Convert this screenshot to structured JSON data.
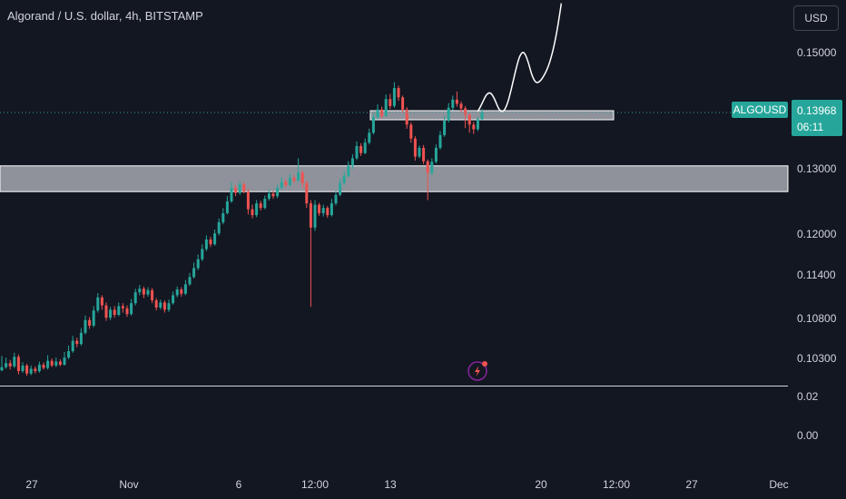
{
  "header": {
    "title": "Algorand / U.S. dollar, 4h, BITSTAMP",
    "currency": "USD"
  },
  "price_badge": {
    "symbol": "ALGOUSD",
    "price": "0.13968",
    "countdown": "06:11"
  },
  "colors": {
    "up": "#26a69a",
    "down": "#ef5350",
    "background": "#131722",
    "zone": "#b2b5be",
    "badge": "#26a69a"
  },
  "icons": {
    "indicator": "lightning-icon"
  },
  "chart_data": {
    "type": "candlestick",
    "y_axis_labels": [
      "0.15000",
      "0.13000",
      "0.12000",
      "0.11400",
      "0.10800",
      "0.10300"
    ],
    "y_axis_values": [
      0.15,
      0.13,
      0.12,
      0.114,
      0.108,
      0.103
    ],
    "indicator_axis_labels": [
      "0.02",
      "0.00"
    ],
    "x_axis_labels": [
      "27",
      "Nov",
      "6",
      "12:00",
      "13",
      "20",
      "12:00",
      "27",
      "Dec"
    ],
    "current_price": 0.13968,
    "zones": [
      {
        "low": 0.1265,
        "high": 0.1305
      },
      {
        "low": 0.1388,
        "high": 0.14
      }
    ],
    "candles": [
      [
        0.1015,
        0.1019,
        0.1033,
        0.1014
      ],
      [
        0.1019,
        0.1024,
        0.1031,
        0.1017
      ],
      [
        0.1024,
        0.102,
        0.1028,
        0.1016
      ],
      [
        0.102,
        0.1032,
        0.1037,
        0.1018
      ],
      [
        0.1032,
        0.1014,
        0.1035,
        0.101
      ],
      [
        0.1014,
        0.1021,
        0.1025,
        0.1012
      ],
      [
        0.1021,
        0.1011,
        0.1023,
        0.1008
      ],
      [
        0.1011,
        0.1017,
        0.1021,
        0.1009
      ],
      [
        0.1017,
        0.1014,
        0.102,
        0.1011
      ],
      [
        0.1014,
        0.1022,
        0.1026,
        0.1012
      ],
      [
        0.1022,
        0.1018,
        0.1025,
        0.1016
      ],
      [
        0.1018,
        0.1027,
        0.1034,
        0.1016
      ],
      [
        0.1027,
        0.1021,
        0.103,
        0.1019
      ],
      [
        0.1021,
        0.1026,
        0.1031,
        0.1019
      ],
      [
        0.1026,
        0.1022,
        0.1029,
        0.102
      ],
      [
        0.1022,
        0.1031,
        0.1038,
        0.1021
      ],
      [
        0.1031,
        0.1039,
        0.1046,
        0.1029
      ],
      [
        0.1039,
        0.1052,
        0.1058,
        0.1037
      ],
      [
        0.1052,
        0.1048,
        0.1056,
        0.1044
      ],
      [
        0.1048,
        0.1062,
        0.1068,
        0.1046
      ],
      [
        0.1062,
        0.1078,
        0.1084,
        0.106
      ],
      [
        0.1078,
        0.1071,
        0.1082,
        0.1067
      ],
      [
        0.1071,
        0.1091,
        0.1097,
        0.1069
      ],
      [
        0.1091,
        0.1109,
        0.1115,
        0.1088
      ],
      [
        0.1109,
        0.1098,
        0.1112,
        0.1092
      ],
      [
        0.1098,
        0.1081,
        0.1102,
        0.1077
      ],
      [
        0.1081,
        0.1092,
        0.1096,
        0.1078
      ],
      [
        0.1092,
        0.1085,
        0.1097,
        0.1081
      ],
      [
        0.1085,
        0.1097,
        0.1102,
        0.1083
      ],
      [
        0.1097,
        0.1094,
        0.1101,
        0.1088
      ],
      [
        0.1094,
        0.1086,
        0.1098,
        0.1082
      ],
      [
        0.1086,
        0.1101,
        0.1107,
        0.1084
      ],
      [
        0.1101,
        0.1116,
        0.1121,
        0.1098
      ],
      [
        0.1116,
        0.1121,
        0.1126,
        0.1112
      ],
      [
        0.1121,
        0.1113,
        0.1124,
        0.1108
      ],
      [
        0.1113,
        0.1119,
        0.1123,
        0.111
      ],
      [
        0.1119,
        0.1105,
        0.1122,
        0.1101
      ],
      [
        0.1105,
        0.1095,
        0.1108,
        0.1091
      ],
      [
        0.1095,
        0.1102,
        0.1106,
        0.1092
      ],
      [
        0.1102,
        0.1092,
        0.1105,
        0.1088
      ],
      [
        0.1092,
        0.1101,
        0.1106,
        0.1089
      ],
      [
        0.1101,
        0.1112,
        0.1117,
        0.1099
      ],
      [
        0.1112,
        0.112,
        0.1124,
        0.1109
      ],
      [
        0.112,
        0.1114,
        0.1123,
        0.111
      ],
      [
        0.1114,
        0.1127,
        0.1133,
        0.1112
      ],
      [
        0.1127,
        0.1137,
        0.1143,
        0.1125
      ],
      [
        0.1137,
        0.115,
        0.1158,
        0.1135
      ],
      [
        0.115,
        0.1163,
        0.117,
        0.1147
      ],
      [
        0.1163,
        0.1178,
        0.1185,
        0.116
      ],
      [
        0.1178,
        0.1192,
        0.1198,
        0.1175
      ],
      [
        0.1192,
        0.1185,
        0.1196,
        0.1181
      ],
      [
        0.1185,
        0.1201,
        0.1207,
        0.1183
      ],
      [
        0.1201,
        0.1218,
        0.1224,
        0.1198
      ],
      [
        0.1218,
        0.1232,
        0.124,
        0.1215
      ],
      [
        0.1232,
        0.125,
        0.1258,
        0.123
      ],
      [
        0.125,
        0.1271,
        0.128,
        0.1248
      ],
      [
        0.1271,
        0.1263,
        0.1275,
        0.1258
      ],
      [
        0.1263,
        0.1276,
        0.1281,
        0.126
      ],
      [
        0.1276,
        0.1265,
        0.1279,
        0.1262
      ],
      [
        0.1265,
        0.1238,
        0.1269,
        0.123
      ],
      [
        0.1238,
        0.1229,
        0.1245,
        0.1224
      ],
      [
        0.1229,
        0.1247,
        0.1252,
        0.1226
      ],
      [
        0.1247,
        0.124,
        0.1251,
        0.1236
      ],
      [
        0.124,
        0.1254,
        0.1259,
        0.1238
      ],
      [
        0.1254,
        0.1262,
        0.1268,
        0.1251
      ],
      [
        0.1262,
        0.1258,
        0.1266,
        0.1254
      ],
      [
        0.1258,
        0.1271,
        0.1276,
        0.1255
      ],
      [
        0.1271,
        0.128,
        0.1287,
        0.1268
      ],
      [
        0.128,
        0.1275,
        0.1284,
        0.1272
      ],
      [
        0.1275,
        0.1286,
        0.1292,
        0.1273
      ],
      [
        0.1286,
        0.1282,
        0.129,
        0.1278
      ],
      [
        0.1282,
        0.1294,
        0.1318,
        0.128
      ],
      [
        0.1294,
        0.1278,
        0.1297,
        0.1271
      ],
      [
        0.1278,
        0.1247,
        0.1282,
        0.124
      ],
      [
        0.1247,
        0.121,
        0.1252,
        0.1096
      ],
      [
        0.121,
        0.1245,
        0.1252,
        0.1205
      ],
      [
        0.1245,
        0.1232,
        0.1248,
        0.1228
      ],
      [
        0.1232,
        0.124,
        0.1245,
        0.1227
      ],
      [
        0.124,
        0.1229,
        0.1243,
        0.1225
      ],
      [
        0.1229,
        0.1247,
        0.1254,
        0.1227
      ],
      [
        0.1247,
        0.126,
        0.1266,
        0.1244
      ],
      [
        0.126,
        0.1278,
        0.1285,
        0.1258
      ],
      [
        0.1278,
        0.1289,
        0.1296,
        0.1275
      ],
      [
        0.1289,
        0.1305,
        0.1313,
        0.1286
      ],
      [
        0.1305,
        0.1318,
        0.1325,
        0.13
      ],
      [
        0.1318,
        0.1339,
        0.1347,
        0.1315
      ],
      [
        0.1339,
        0.1327,
        0.1344,
        0.1322
      ],
      [
        0.1327,
        0.1345,
        0.1352,
        0.1325
      ],
      [
        0.1345,
        0.1362,
        0.1369,
        0.1342
      ],
      [
        0.1362,
        0.1389,
        0.1395,
        0.1359
      ],
      [
        0.1389,
        0.1402,
        0.1411,
        0.1385
      ],
      [
        0.1402,
        0.1391,
        0.1407,
        0.1386
      ],
      [
        0.1391,
        0.142,
        0.1428,
        0.1389
      ],
      [
        0.142,
        0.1408,
        0.1429,
        0.1403
      ],
      [
        0.1408,
        0.1439,
        0.1449,
        0.1405
      ],
      [
        0.1439,
        0.1423,
        0.1443,
        0.1417
      ],
      [
        0.1423,
        0.1402,
        0.1426,
        0.1396
      ],
      [
        0.1402,
        0.1376,
        0.1406,
        0.1369
      ],
      [
        0.1376,
        0.1352,
        0.138,
        0.1345
      ],
      [
        0.1352,
        0.1321,
        0.1356,
        0.1314
      ],
      [
        0.1321,
        0.1336,
        0.134,
        0.1318
      ],
      [
        0.1336,
        0.1313,
        0.1341,
        0.1308
      ],
      [
        0.1313,
        0.1294,
        0.1316,
        0.1252
      ],
      [
        0.1294,
        0.1312,
        0.1318,
        0.129
      ],
      [
        0.1312,
        0.1336,
        0.1342,
        0.1309
      ],
      [
        0.1336,
        0.1358,
        0.1365,
        0.1333
      ],
      [
        0.1358,
        0.1383,
        0.1391,
        0.1355
      ],
      [
        0.1383,
        0.1405,
        0.1413,
        0.138
      ],
      [
        0.1405,
        0.1419,
        0.1426,
        0.1401
      ],
      [
        0.1419,
        0.1412,
        0.1433,
        0.1407
      ],
      [
        0.1412,
        0.1404,
        0.1416,
        0.1397
      ],
      [
        0.1404,
        0.1393,
        0.1408,
        0.137
      ],
      [
        0.1393,
        0.1376,
        0.1396,
        0.1362
      ],
      [
        0.1376,
        0.1368,
        0.1381,
        0.136
      ],
      [
        0.1368,
        0.1385,
        0.139,
        0.1365
      ],
      [
        0.1385,
        0.1397,
        0.1403,
        0.1383
      ]
    ],
    "projection_path": [
      [
        114,
        0.13985
      ],
      [
        115,
        0.1412
      ],
      [
        116,
        0.1428
      ],
      [
        117,
        0.1432
      ],
      [
        118,
        0.1421
      ],
      [
        119,
        0.1402
      ],
      [
        120,
        0.1397
      ],
      [
        121,
        0.1409
      ],
      [
        122,
        0.1436
      ],
      [
        123,
        0.1468
      ],
      [
        124,
        0.1495
      ],
      [
        125,
        0.1503
      ],
      [
        126,
        0.1486
      ],
      [
        127,
        0.1459
      ],
      [
        128,
        0.1447
      ],
      [
        129,
        0.1451
      ],
      [
        130,
        0.1462
      ],
      [
        131,
        0.1478
      ],
      [
        132,
        0.1503
      ],
      [
        133,
        0.1538
      ],
      [
        134,
        0.1585
      ]
    ]
  }
}
